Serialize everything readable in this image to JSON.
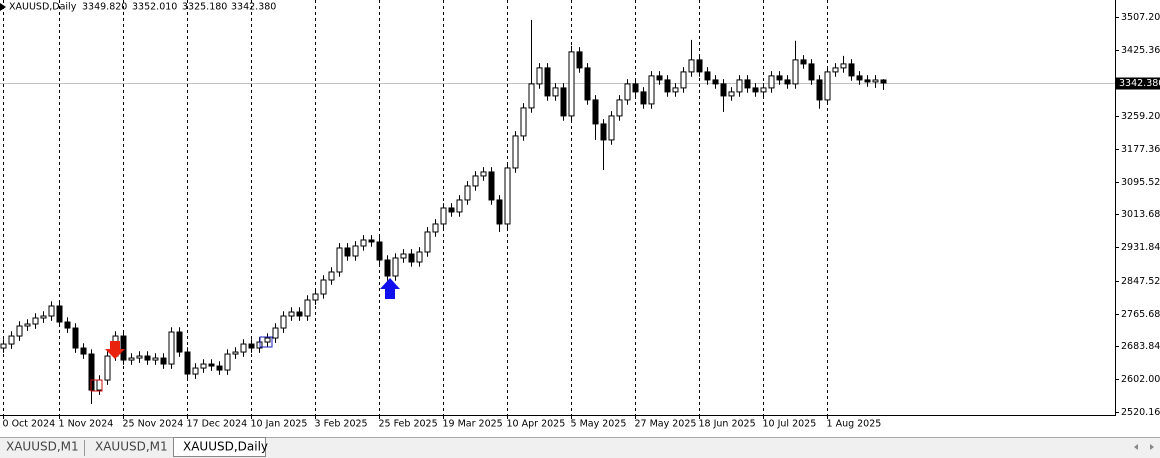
{
  "chart_data": {
    "type": "candlestick",
    "header": {
      "symbol": "XAUUSD,Daily",
      "ohlc": [
        "3349.820",
        "3352.010",
        "3325.180",
        "3342.380"
      ]
    },
    "categories": [
      "0 Oct 2024",
      null,
      null,
      null,
      null,
      null,
      null,
      "1 Nov 2024",
      null,
      null,
      null,
      null,
      null,
      null,
      null,
      "25 Nov 2024",
      null,
      null,
      null,
      null,
      null,
      null,
      null,
      "17 Dec 2024",
      null,
      null,
      null,
      null,
      null,
      null,
      null,
      "10 Jan 2025",
      null,
      null,
      null,
      null,
      null,
      null,
      null,
      "3 Feb 2025",
      null,
      null,
      null,
      null,
      null,
      null,
      null,
      "25 Feb 2025",
      null,
      null,
      null,
      null,
      null,
      null,
      null,
      "19 Mar 2025",
      null,
      null,
      null,
      null,
      null,
      null,
      null,
      "10 Apr 2025",
      null,
      null,
      null,
      null,
      null,
      null,
      null,
      "5 May 2025",
      null,
      null,
      null,
      null,
      null,
      null,
      null,
      "27 May 2025",
      null,
      null,
      null,
      null,
      null,
      null,
      null,
      "18 Jun 2025",
      null,
      null,
      null,
      null,
      null,
      null,
      null,
      "10 Jul 2025",
      null,
      null,
      null,
      null,
      null,
      null,
      null,
      "1 Aug 2025",
      null,
      null,
      null,
      null,
      null,
      null,
      null
    ],
    "open": [
      2680,
      2690,
      2710,
      2735,
      2740,
      2755,
      2760,
      2785,
      2745,
      2730,
      2680,
      2665,
      2575,
      2600,
      2660,
      2710,
      2650,
      2655,
      2660,
      2650,
      2655,
      2640,
      2720,
      2670,
      2615,
      2630,
      2640,
      2635,
      2625,
      2665,
      2670,
      2690,
      2680,
      2695,
      2705,
      2730,
      2760,
      2770,
      2760,
      2800,
      2815,
      2850,
      2870,
      2930,
      2910,
      2935,
      2950,
      2945,
      2900,
      2860,
      2905,
      2915,
      2895,
      2920,
      2970,
      2990,
      3030,
      3020,
      3050,
      3085,
      3110,
      3120,
      3050,
      2990,
      3130,
      3210,
      3280,
      3340,
      3380,
      3310,
      3330,
      3260,
      3420,
      3380,
      3300,
      3240,
      3200,
      3260,
      3300,
      3340,
      3320,
      3290,
      3360,
      3350,
      3320,
      3330,
      3370,
      3400,
      3370,
      3350,
      3340,
      3310,
      3320,
      3350,
      3330,
      3320,
      3330,
      3360,
      3350,
      3340,
      3400,
      3390,
      3350,
      3300,
      3370,
      3380,
      3390,
      3360,
      3350,
      3345,
      3349.82
    ],
    "high": [
      2702,
      2722,
      2747,
      2752,
      2767,
      2772,
      2797,
      2797,
      2757,
      2742,
      2692,
      2677,
      2612,
      2672,
      2722,
      2722,
      2667,
      2672,
      2672,
      2667,
      2667,
      2732,
      2732,
      2682,
      2642,
      2652,
      2652,
      2647,
      2677,
      2682,
      2702,
      2702,
      2707,
      2717,
      2742,
      2772,
      2782,
      2782,
      2812,
      2827,
      2862,
      2882,
      2942,
      2942,
      2947,
      2962,
      2962,
      2957,
      2912,
      2917,
      2927,
      2927,
      2932,
      2982,
      3002,
      3042,
      3042,
      3062,
      3097,
      3122,
      3132,
      3132,
      3062,
      3142,
      3222,
      3292,
      3500,
      3392,
      3392,
      3342,
      3342,
      3435,
      3432,
      3392,
      3312,
      3252,
      3272,
      3312,
      3352,
      3352,
      3332,
      3372,
      3372,
      3362,
      3342,
      3382,
      3450,
      3412,
      3382,
      3362,
      3352,
      3332,
      3362,
      3362,
      3342,
      3342,
      3372,
      3372,
      3362,
      3448,
      3412,
      3402,
      3362,
      3382,
      3392,
      3410,
      3402,
      3372,
      3362,
      3362,
      3352.01
    ],
    "low": [
      2668,
      2678,
      2698,
      2723,
      2728,
      2743,
      2748,
      2733,
      2718,
      2668,
      2653,
      2540,
      2563,
      2588,
      2648,
      2638,
      2638,
      2643,
      2638,
      2638,
      2628,
      2628,
      2658,
      2603,
      2603,
      2618,
      2623,
      2613,
      2613,
      2653,
      2658,
      2668,
      2668,
      2683,
      2693,
      2718,
      2748,
      2748,
      2748,
      2788,
      2803,
      2838,
      2858,
      2898,
      2898,
      2923,
      2933,
      2888,
      2848,
      2848,
      2893,
      2883,
      2883,
      2908,
      2958,
      2978,
      3008,
      3008,
      3038,
      3073,
      3098,
      3038,
      2970,
      2978,
      3118,
      3198,
      3268,
      3328,
      3298,
      3298,
      3248,
      3248,
      3368,
      3288,
      3200,
      3125,
      3188,
      3248,
      3288,
      3308,
      3278,
      3278,
      3338,
      3308,
      3308,
      3318,
      3358,
      3358,
      3338,
      3328,
      3270,
      3298,
      3308,
      3318,
      3308,
      3308,
      3318,
      3338,
      3328,
      3328,
      3378,
      3338,
      3278,
      3288,
      3358,
      3368,
      3348,
      3338,
      3333,
      3330,
      3325.18
    ],
    "close": [
      2690,
      2710,
      2735,
      2740,
      2755,
      2760,
      2785,
      2745,
      2730,
      2680,
      2665,
      2575,
      2600,
      2660,
      2710,
      2650,
      2655,
      2660,
      2650,
      2655,
      2640,
      2720,
      2670,
      2615,
      2630,
      2640,
      2635,
      2625,
      2665,
      2670,
      2690,
      2680,
      2695,
      2705,
      2730,
      2760,
      2770,
      2760,
      2800,
      2815,
      2850,
      2870,
      2930,
      2910,
      2935,
      2950,
      2945,
      2900,
      2860,
      2905,
      2915,
      2895,
      2920,
      2970,
      2990,
      3030,
      3020,
      3050,
      3085,
      3110,
      3120,
      3050,
      2990,
      3130,
      3210,
      3280,
      3340,
      3380,
      3310,
      3330,
      3260,
      3420,
      3380,
      3300,
      3240,
      3200,
      3260,
      3300,
      3340,
      3320,
      3290,
      3360,
      3350,
      3320,
      3330,
      3370,
      3400,
      3370,
      3350,
      3340,
      3310,
      3320,
      3350,
      3330,
      3320,
      3330,
      3360,
      3350,
      3340,
      3400,
      3390,
      3350,
      3300,
      3370,
      3380,
      3390,
      3360,
      3350,
      3345,
      3349.82,
      3342.38
    ],
    "up_color": "#ffffff",
    "down_color": "#000000",
    "wick_color": "#000000",
    "ylim": [
      2512.66,
      3549.68
    ],
    "yticks": [
      {
        "value": 3507.2,
        "label": "3507.200"
      },
      {
        "value": 3425.36,
        "label": "3425.360"
      },
      {
        "value": 3259.2,
        "label": "3259.200"
      },
      {
        "value": 3177.36,
        "label": "3177.360"
      },
      {
        "value": 3095.52,
        "label": "3095.520"
      },
      {
        "value": 3013.68,
        "label": "3013.680"
      },
      {
        "value": 2931.84,
        "label": "2931.840"
      },
      {
        "value": 2847.52,
        "label": "2847.520"
      },
      {
        "value": 2765.68,
        "label": "2765.680"
      },
      {
        "value": 2683.84,
        "label": "2683.840"
      },
      {
        "value": 2602,
        "label": "2602.000"
      },
      {
        "value": 2520.16,
        "label": "2520.160"
      }
    ],
    "price_label": {
      "value": 3342.38,
      "label": "3342.380"
    },
    "grid": true
  },
  "tabs": [
    "XAUUSD,M1",
    "XAUUSD,M1",
    "XAUUSD,Daily"
  ]
}
